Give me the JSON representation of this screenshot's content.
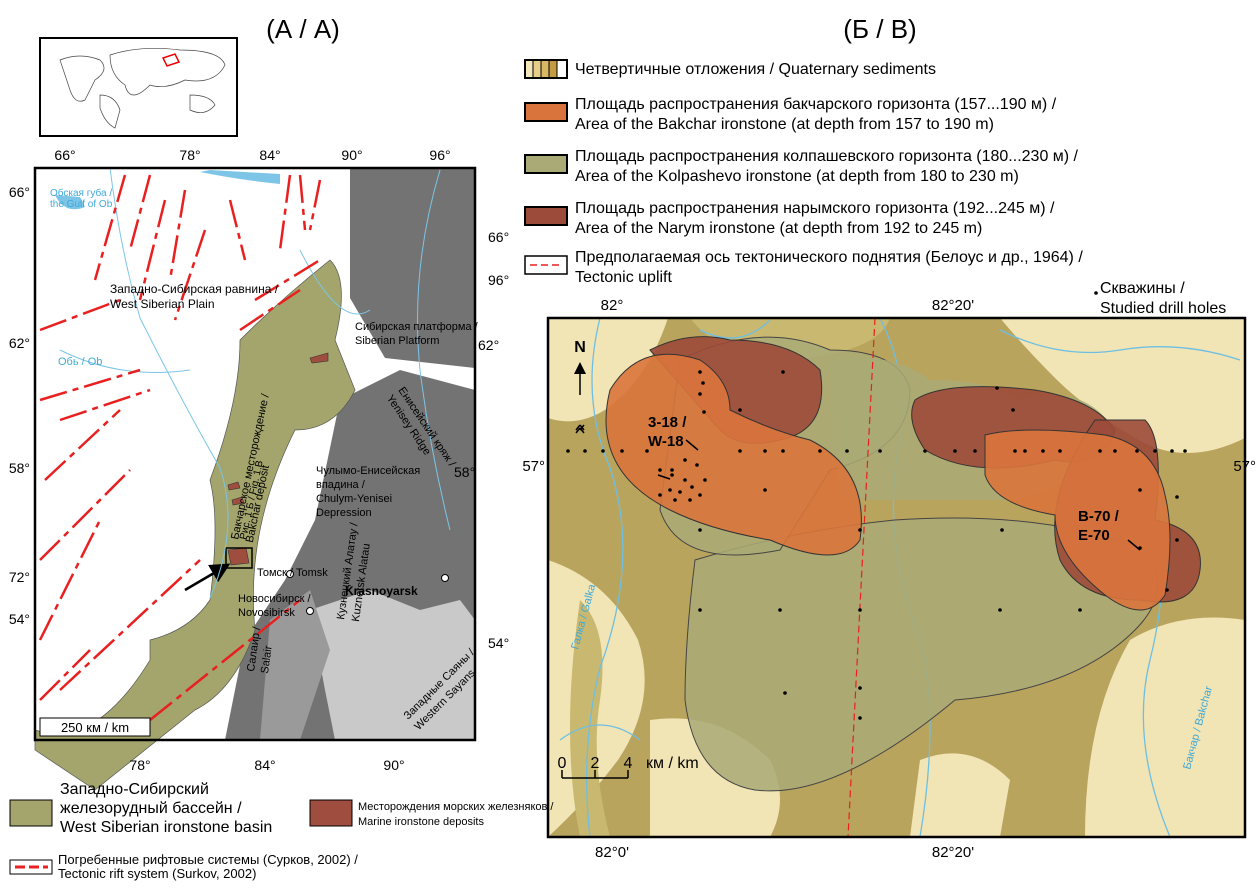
{
  "panel_a": {
    "title": "(А / А)",
    "top_lon": [
      "66°",
      "78°",
      "84°",
      "90°",
      "96°"
    ],
    "bottom_lon": [
      "78°",
      "84°",
      "90°"
    ],
    "left_lat": [
      "66°",
      "62°",
      "58°",
      "72°",
      "54°"
    ],
    "right_lat": [
      "66°",
      "96°",
      "62°",
      "58°",
      "54°"
    ],
    "places": [
      {
        "lines": [
          "Обская губа /",
          "the Gulf of Ob"
        ]
      },
      {
        "lines": [
          "Западно-Сибирская равнина /",
          "West Siberian Plain"
        ]
      },
      {
        "lines": [
          "Обь / Ob"
        ]
      },
      {
        "lines": [
          "Сибирская платформа /",
          "Siberian Platform"
        ]
      },
      {
        "lines": [
          "Енисейский кряж /",
          "Yenisey Ridge"
        ]
      },
      {
        "lines": [
          "Чулымо-Енисейская",
          "впадина /",
          "Chulym-Yenisei",
          "Depression"
        ]
      },
      {
        "lines": [
          "Томск / Tomsk"
        ]
      },
      {
        "lines": [
          "Krasnoyarsk"
        ]
      },
      {
        "lines": [
          "Новосибирск /",
          "Novosibirsk"
        ]
      },
      {
        "lines": [
          "Бакчарское месторождение /",
          "Bakchar deposit"
        ]
      },
      {
        "lines": [
          "Рис. 1 Б / Fig. 1 B"
        ]
      },
      {
        "lines": [
          "Кузнецкий Алатау /",
          "Kuznetsk Alatau"
        ]
      },
      {
        "lines": [
          "Салаир /",
          "Salair"
        ]
      },
      {
        "lines": [
          "Западные Саяны /",
          "Western Sayans"
        ]
      }
    ],
    "scale": "250 км / km",
    "legend": [
      {
        "lines": [
          "Западно-Сибирский",
          "железорудный бассейн /",
          "West Siberian ironstone basin"
        ]
      },
      {
        "lines": [
          "Месторождения морских железняков /",
          "Marine ironstone deposits"
        ]
      },
      {
        "lines": [
          "Погребенные рифтовые системы (Сурков, 2002) /",
          "Tectonic rift system (Surkov, 2002)"
        ]
      }
    ]
  },
  "panel_b": {
    "title": "(Б / В)",
    "legend": [
      {
        "lines": [
          "Четвертичные отложения / Quaternary sediments"
        ]
      },
      {
        "lines": [
          "Площадь распространения бакчарского горизонта (157...190 м) /",
          "Area of the Bakchar ironstone (at depth from 157 to 190 m)"
        ]
      },
      {
        "lines": [
          "Площадь распространения колпашевского горизонта (180...230 м) /",
          "Area of the Kolpashevo ironstone (at depth from 180 to 230 m)"
        ]
      },
      {
        "lines": [
          "Площадь распространения нарымского горизонта (192...245 м) /",
          "Area of the Narym ironstone (at depth from 192 to 245 m)"
        ]
      },
      {
        "lines": [
          "Предполагаемая ось тектонического поднятия (Белоус и др., 1964) /",
          "Tectonic uplift"
        ]
      }
    ],
    "drill_holes": [
      "Скважины /",
      "Studied drill holes"
    ],
    "top_lon": [
      "82°",
      "82°20'"
    ],
    "bottom_lon": [
      "82°0'",
      "82°20'"
    ],
    "lat": [
      "57°",
      "57°"
    ],
    "wells": [
      {
        "lines": [
          "3-18 /",
          "W-18"
        ]
      },
      {
        "lines": [
          "B-70 /",
          "E-70"
        ]
      }
    ],
    "rivers": [
      "Галка / Galka",
      "Бакчар / Bakchar"
    ],
    "north": "N",
    "scale": [
      "0",
      "2",
      "4",
      "км / km"
    ]
  }
}
